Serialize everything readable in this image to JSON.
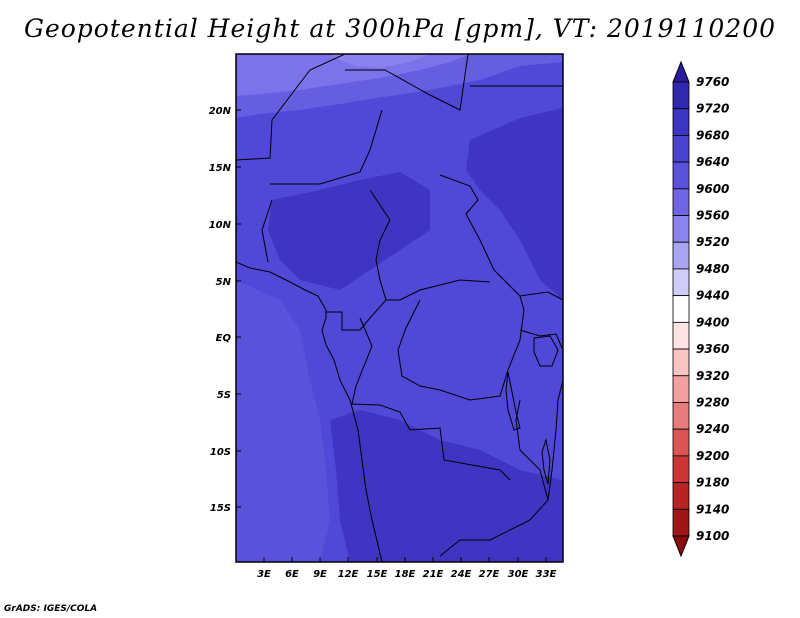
{
  "title": "Geopotential Height at 300hPa [gpm], VT: 2019110200",
  "credit": "GrADS: IGES/COLA",
  "map": {
    "lat_labels": [
      "20N",
      "15N",
      "10N",
      "5N",
      "EQ",
      "5S",
      "10S",
      "15S"
    ],
    "lon_labels": [
      "3E",
      "6E",
      "9E",
      "12E",
      "15E",
      "18E",
      "21E",
      "24E",
      "27E",
      "30E",
      "33E"
    ],
    "fill_colors": {
      "north_high": "#7c72ea",
      "north_mid": "#665ee0",
      "base": "#5048d6",
      "core": "#3f35c2"
    }
  },
  "colorbar": {
    "levels": [
      "9760",
      "9720",
      "9680",
      "9640",
      "9600",
      "9560",
      "9520",
      "9480",
      "9440",
      "9400",
      "9360",
      "9320",
      "9280",
      "9240",
      "9200",
      "9180",
      "9140",
      "9100"
    ],
    "colors": [
      "#2a1aa0",
      "#3128b0",
      "#3d34c2",
      "#4a42cf",
      "#5a52db",
      "#7066e3",
      "#8b84ec",
      "#aaa5f2",
      "#cfcdf8",
      "#ffffff",
      "#fde3e3",
      "#f8c4c4",
      "#f2a0a0",
      "#e87c7c",
      "#dc5555",
      "#cc3535",
      "#b82424",
      "#a01616",
      "#8a0c0c"
    ]
  }
}
